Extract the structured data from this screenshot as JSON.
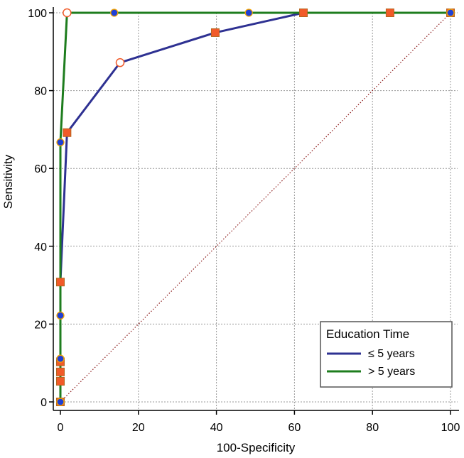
{
  "chart_data": {
    "type": "line",
    "title": "",
    "xlabel": "100-Specificity",
    "ylabel": "Sensitivity",
    "xlim": [
      0,
      100
    ],
    "ylim": [
      0,
      100
    ],
    "x_ticks": [
      0,
      20,
      40,
      60,
      80,
      100
    ],
    "y_ticks": [
      0,
      20,
      40,
      60,
      80,
      100
    ],
    "grid": true,
    "legend": {
      "title": "Education Time",
      "placement": "bottom-right"
    },
    "diagonal_reference": {
      "from": [
        0,
        0
      ],
      "to": [
        100,
        100
      ],
      "color": "#8B1A1A",
      "style": "dotted"
    },
    "series": [
      {
        "name": "≤ 5 years",
        "color": "#2E3192",
        "points": [
          {
            "x": 0,
            "y": 0,
            "marker": "square"
          },
          {
            "x": 0,
            "y": 5.3,
            "marker": "square"
          },
          {
            "x": 0,
            "y": 7.7,
            "marker": "square"
          },
          {
            "x": 0,
            "y": 10.3,
            "marker": "square"
          },
          {
            "x": 0,
            "y": 30.8,
            "marker": "square"
          },
          {
            "x": 1.7,
            "y": 69.2,
            "marker": "square"
          },
          {
            "x": 15.3,
            "y": 87.2,
            "marker": "open-circle"
          },
          {
            "x": 39.7,
            "y": 94.9,
            "marker": "square"
          },
          {
            "x": 62.3,
            "y": 100,
            "marker": "square"
          },
          {
            "x": 84.5,
            "y": 100,
            "marker": "square"
          },
          {
            "x": 100,
            "y": 100,
            "marker": "square"
          }
        ]
      },
      {
        "name": "> 5 years",
        "color": "#1E7D1E",
        "points": [
          {
            "x": 0,
            "y": 0,
            "marker": "dot"
          },
          {
            "x": 0,
            "y": 11.1,
            "marker": "dot"
          },
          {
            "x": 0,
            "y": 22.2,
            "marker": "dot"
          },
          {
            "x": 0,
            "y": 66.7,
            "marker": "dot"
          },
          {
            "x": 1.7,
            "y": 100,
            "marker": "open-circle"
          },
          {
            "x": 13.8,
            "y": 100,
            "marker": "dot"
          },
          {
            "x": 48.3,
            "y": 100,
            "marker": "dot"
          },
          {
            "x": 100,
            "y": 100,
            "marker": "dot"
          }
        ]
      }
    ],
    "colors": {
      "square_fill": "#F15A29",
      "square_stroke": "#B5651D",
      "dot_fill": "#1F3FD6",
      "dot_stroke": "#F4A300",
      "open_circle_fill": "#FFFFFF",
      "open_circle_stroke": "#F15A29",
      "grid": "#9A9A9A",
      "axis": "#000000"
    }
  }
}
